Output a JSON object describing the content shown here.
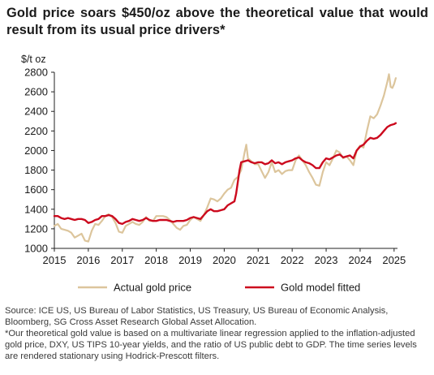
{
  "title": "Gold price soars $450/oz above the theoretical value that would result from its usual price drivers*",
  "footnotes": {
    "source": "Source: ICE US, US Bureau of Labor Statistics, US Treasury, US Bureau of Economic Analysis, Bloomberg, SG Cross Asset Research Global Asset Allocation.",
    "note": "*Our theoretical gold value is based on a multivariate linear regression applied to the inflation-adjusted gold price, DXY, US TIPS 10-year yields, and the ratio of US public debt to GDP. The time series levels are rendered stationary using Hodrick-Prescott filters."
  },
  "chart_data": {
    "type": "line",
    "ylabel": "$/t oz",
    "xlabel": "",
    "xlim": [
      2015,
      2025.1
    ],
    "ylim": [
      1000,
      2800
    ],
    "xticks": [
      "2015",
      "2016",
      "2017",
      "2018",
      "2019",
      "2020",
      "2021",
      "2022",
      "2023",
      "2024",
      "2025"
    ],
    "yticks": [
      "1000",
      "1200",
      "1400",
      "1600",
      "1800",
      "2000",
      "2200",
      "2400",
      "2600",
      "2800"
    ],
    "grid": false,
    "legend": "bottom",
    "series": [
      {
        "name": "Actual gold price",
        "color": "#dcc59c",
        "points": [
          [
            2015.0,
            1230
          ],
          [
            2015.1,
            1250
          ],
          [
            2015.2,
            1200
          ],
          [
            2015.3,
            1190
          ],
          [
            2015.4,
            1180
          ],
          [
            2015.5,
            1160
          ],
          [
            2015.6,
            1110
          ],
          [
            2015.7,
            1130
          ],
          [
            2015.8,
            1150
          ],
          [
            2015.9,
            1080
          ],
          [
            2016.0,
            1070
          ],
          [
            2016.1,
            1180
          ],
          [
            2016.2,
            1250
          ],
          [
            2016.3,
            1240
          ],
          [
            2016.4,
            1280
          ],
          [
            2016.5,
            1330
          ],
          [
            2016.6,
            1350
          ],
          [
            2016.7,
            1320
          ],
          [
            2016.8,
            1260
          ],
          [
            2016.9,
            1170
          ],
          [
            2017.0,
            1160
          ],
          [
            2017.1,
            1230
          ],
          [
            2017.2,
            1250
          ],
          [
            2017.3,
            1270
          ],
          [
            2017.4,
            1250
          ],
          [
            2017.5,
            1240
          ],
          [
            2017.6,
            1270
          ],
          [
            2017.7,
            1320
          ],
          [
            2017.8,
            1280
          ],
          [
            2017.9,
            1280
          ],
          [
            2018.0,
            1330
          ],
          [
            2018.1,
            1330
          ],
          [
            2018.2,
            1330
          ],
          [
            2018.3,
            1320
          ],
          [
            2018.4,
            1290
          ],
          [
            2018.5,
            1250
          ],
          [
            2018.6,
            1210
          ],
          [
            2018.7,
            1190
          ],
          [
            2018.8,
            1230
          ],
          [
            2018.9,
            1240
          ],
          [
            2019.0,
            1290
          ],
          [
            2019.1,
            1320
          ],
          [
            2019.2,
            1300
          ],
          [
            2019.3,
            1280
          ],
          [
            2019.4,
            1340
          ],
          [
            2019.5,
            1420
          ],
          [
            2019.6,
            1510
          ],
          [
            2019.7,
            1500
          ],
          [
            2019.8,
            1480
          ],
          [
            2019.9,
            1510
          ],
          [
            2020.0,
            1560
          ],
          [
            2020.1,
            1600
          ],
          [
            2020.2,
            1620
          ],
          [
            2020.3,
            1700
          ],
          [
            2020.4,
            1730
          ],
          [
            2020.5,
            1800
          ],
          [
            2020.6,
            1980
          ],
          [
            2020.65,
            2060
          ],
          [
            2020.7,
            1920
          ],
          [
            2020.8,
            1890
          ],
          [
            2020.9,
            1860
          ],
          [
            2021.0,
            1860
          ],
          [
            2021.1,
            1790
          ],
          [
            2021.2,
            1720
          ],
          [
            2021.3,
            1780
          ],
          [
            2021.4,
            1880
          ],
          [
            2021.5,
            1780
          ],
          [
            2021.6,
            1800
          ],
          [
            2021.7,
            1760
          ],
          [
            2021.8,
            1790
          ],
          [
            2021.9,
            1800
          ],
          [
            2022.0,
            1800
          ],
          [
            2022.1,
            1900
          ],
          [
            2022.2,
            1950
          ],
          [
            2022.3,
            1900
          ],
          [
            2022.4,
            1850
          ],
          [
            2022.5,
            1780
          ],
          [
            2022.6,
            1720
          ],
          [
            2022.7,
            1650
          ],
          [
            2022.8,
            1640
          ],
          [
            2022.9,
            1780
          ],
          [
            2023.0,
            1880
          ],
          [
            2023.1,
            1850
          ],
          [
            2023.2,
            1920
          ],
          [
            2023.3,
            2000
          ],
          [
            2023.4,
            1980
          ],
          [
            2023.5,
            1920
          ],
          [
            2023.6,
            1940
          ],
          [
            2023.7,
            1900
          ],
          [
            2023.8,
            1850
          ],
          [
            2023.9,
            2000
          ],
          [
            2024.0,
            2050
          ],
          [
            2024.1,
            2030
          ],
          [
            2024.2,
            2200
          ],
          [
            2024.3,
            2350
          ],
          [
            2024.4,
            2330
          ],
          [
            2024.5,
            2370
          ],
          [
            2024.6,
            2460
          ],
          [
            2024.7,
            2560
          ],
          [
            2024.8,
            2700
          ],
          [
            2024.85,
            2780
          ],
          [
            2024.9,
            2650
          ],
          [
            2024.95,
            2640
          ],
          [
            2025.0,
            2680
          ],
          [
            2025.05,
            2740
          ]
        ]
      },
      {
        "name": "Gold model fitted",
        "color": "#cc0a1e",
        "points": [
          [
            2015.0,
            1330
          ],
          [
            2015.1,
            1330
          ],
          [
            2015.2,
            1310
          ],
          [
            2015.3,
            1300
          ],
          [
            2015.4,
            1310
          ],
          [
            2015.5,
            1300
          ],
          [
            2015.6,
            1290
          ],
          [
            2015.7,
            1300
          ],
          [
            2015.8,
            1300
          ],
          [
            2015.9,
            1290
          ],
          [
            2016.0,
            1260
          ],
          [
            2016.1,
            1270
          ],
          [
            2016.2,
            1290
          ],
          [
            2016.3,
            1300
          ],
          [
            2016.4,
            1330
          ],
          [
            2016.5,
            1330
          ],
          [
            2016.6,
            1340
          ],
          [
            2016.7,
            1330
          ],
          [
            2016.8,
            1300
          ],
          [
            2016.9,
            1260
          ],
          [
            2017.0,
            1250
          ],
          [
            2017.1,
            1270
          ],
          [
            2017.2,
            1280
          ],
          [
            2017.3,
            1300
          ],
          [
            2017.4,
            1290
          ],
          [
            2017.5,
            1280
          ],
          [
            2017.6,
            1290
          ],
          [
            2017.7,
            1310
          ],
          [
            2017.8,
            1290
          ],
          [
            2017.9,
            1280
          ],
          [
            2018.0,
            1280
          ],
          [
            2018.1,
            1290
          ],
          [
            2018.2,
            1290
          ],
          [
            2018.3,
            1290
          ],
          [
            2018.4,
            1280
          ],
          [
            2018.5,
            1270
          ],
          [
            2018.6,
            1280
          ],
          [
            2018.7,
            1280
          ],
          [
            2018.8,
            1280
          ],
          [
            2018.9,
            1290
          ],
          [
            2019.0,
            1310
          ],
          [
            2019.1,
            1320
          ],
          [
            2019.2,
            1310
          ],
          [
            2019.3,
            1300
          ],
          [
            2019.4,
            1340
          ],
          [
            2019.5,
            1380
          ],
          [
            2019.6,
            1400
          ],
          [
            2019.7,
            1380
          ],
          [
            2019.8,
            1380
          ],
          [
            2019.9,
            1390
          ],
          [
            2020.0,
            1400
          ],
          [
            2020.1,
            1440
          ],
          [
            2020.2,
            1460
          ],
          [
            2020.3,
            1480
          ],
          [
            2020.35,
            1560
          ],
          [
            2020.4,
            1680
          ],
          [
            2020.45,
            1800
          ],
          [
            2020.5,
            1880
          ],
          [
            2020.6,
            1890
          ],
          [
            2020.7,
            1900
          ],
          [
            2020.8,
            1880
          ],
          [
            2020.9,
            1870
          ],
          [
            2021.0,
            1880
          ],
          [
            2021.1,
            1880
          ],
          [
            2021.2,
            1860
          ],
          [
            2021.3,
            1870
          ],
          [
            2021.4,
            1900
          ],
          [
            2021.5,
            1870
          ],
          [
            2021.6,
            1880
          ],
          [
            2021.7,
            1860
          ],
          [
            2021.8,
            1880
          ],
          [
            2021.9,
            1890
          ],
          [
            2022.0,
            1900
          ],
          [
            2022.1,
            1920
          ],
          [
            2022.2,
            1930
          ],
          [
            2022.3,
            1900
          ],
          [
            2022.4,
            1880
          ],
          [
            2022.5,
            1870
          ],
          [
            2022.6,
            1850
          ],
          [
            2022.7,
            1820
          ],
          [
            2022.8,
            1820
          ],
          [
            2022.9,
            1880
          ],
          [
            2023.0,
            1920
          ],
          [
            2023.1,
            1910
          ],
          [
            2023.2,
            1930
          ],
          [
            2023.3,
            1950
          ],
          [
            2023.4,
            1960
          ],
          [
            2023.5,
            1930
          ],
          [
            2023.6,
            1940
          ],
          [
            2023.7,
            1950
          ],
          [
            2023.8,
            1920
          ],
          [
            2023.9,
            2000
          ],
          [
            2024.0,
            2040
          ],
          [
            2024.1,
            2060
          ],
          [
            2024.2,
            2100
          ],
          [
            2024.3,
            2130
          ],
          [
            2024.4,
            2120
          ],
          [
            2024.5,
            2130
          ],
          [
            2024.6,
            2160
          ],
          [
            2024.7,
            2200
          ],
          [
            2024.8,
            2240
          ],
          [
            2024.9,
            2260
          ],
          [
            2025.0,
            2270
          ],
          [
            2025.05,
            2280
          ]
        ]
      }
    ]
  }
}
